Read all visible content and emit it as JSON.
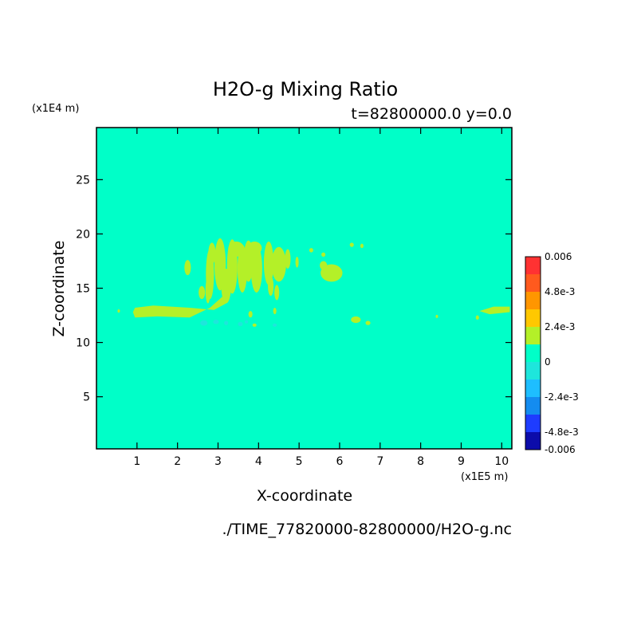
{
  "chart_data": {
    "type": "heatmap",
    "title": "H2O-g Mixing Ratio",
    "subtitle": "t=82800000.0 y=0.0",
    "xlabel": "X-coordinate",
    "ylabel": "Z-coordinate",
    "x_unit": "(x1E5 m)",
    "y_unit": "(x1E4 m)",
    "x_ticks": [
      "1",
      "2",
      "3",
      "4",
      "5",
      "6",
      "7",
      "8",
      "9",
      "10"
    ],
    "y_ticks": [
      "5",
      "10",
      "15",
      "20",
      "25"
    ],
    "xlim": [
      0,
      10.25
    ],
    "ylim": [
      0.2,
      29.8
    ],
    "background_level": "0 to 1.2e-3",
    "colorbar": {
      "tick_labels": [
        "0.006",
        "4.8e-3",
        "2.4e-3",
        "0",
        "-2.4e-3",
        "-4.8e-3",
        "-0.006"
      ],
      "levels": [
        {
          "from": -0.006,
          "to": -0.0048,
          "color": "#0c0caa"
        },
        {
          "from": -0.0048,
          "to": -0.0036,
          "color": "#1e3cff"
        },
        {
          "from": -0.0036,
          "to": -0.0024,
          "color": "#148cf0"
        },
        {
          "from": -0.0024,
          "to": -0.0012,
          "color": "#1ebeff"
        },
        {
          "from": -0.0012,
          "to": 0,
          "color": "#1ee6dc"
        },
        {
          "from": 0,
          "to": 0.0012,
          "color": "#00ffc8"
        },
        {
          "from": 0.0012,
          "to": 0.0024,
          "color": "#b4f028"
        },
        {
          "from": 0.0024,
          "to": 0.0036,
          "color": "#ffc800"
        },
        {
          "from": 0.0036,
          "to": 0.0048,
          "color": "#ff9600"
        },
        {
          "from": 0.0048,
          "to": 0.006,
          "color": "#ff5a1e"
        },
        {
          "from": 0.006,
          "to": 0.0072,
          "color": "#ff3232"
        }
      ]
    },
    "features": [
      {
        "level": "1.2e-3 to 2.4e-3",
        "color": "#b4f028",
        "x_range": [
          0.9,
          3.3
        ],
        "z_range": [
          12.0,
          13.4
        ],
        "shape": "horizontal band"
      },
      {
        "level": "1.2e-3 to 2.4e-3",
        "color": "#b4f028",
        "x_range": [
          2.1,
          4.9
        ],
        "z_range": [
          12.2,
          19.5
        ],
        "shape": "vertical plumes"
      },
      {
        "level": "1.2e-3 to 2.4e-3",
        "color": "#b4f028",
        "x_range": [
          5.55,
          6.1
        ],
        "z_range": [
          15.5,
          17.2
        ],
        "shape": "blob"
      },
      {
        "level": "1.2e-3 to 2.4e-3",
        "color": "#b4f028",
        "x_range": [
          9.4,
          10.2
        ],
        "z_range": [
          12.6,
          13.3
        ],
        "shape": "patch"
      },
      {
        "level": "-1.2e-3 to 0",
        "color": "#1ee6dc",
        "x_range": [
          2.2,
          4.6
        ],
        "z_range": [
          11.4,
          12.0
        ],
        "shape": "specks"
      }
    ]
  },
  "footer": {
    "filename": "./TIME_77820000-82800000/H2O-g.nc"
  }
}
